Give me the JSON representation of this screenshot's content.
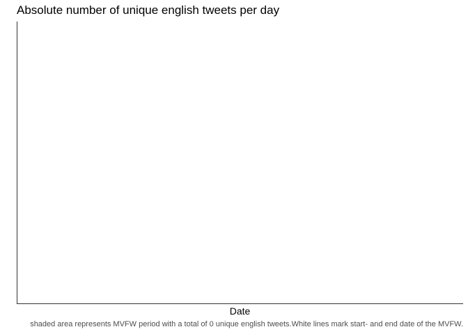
{
  "chart_data": {
    "type": "area",
    "title": "Absolute number of unique english tweets per day",
    "xlabel": "Date",
    "ylabel": "",
    "series": [],
    "caption": "shaded area represents MVFW period with a total of 0 unique english tweets.White lines mark start- and end date of the MVFW.",
    "grid": false,
    "axis_color": "#333333"
  }
}
